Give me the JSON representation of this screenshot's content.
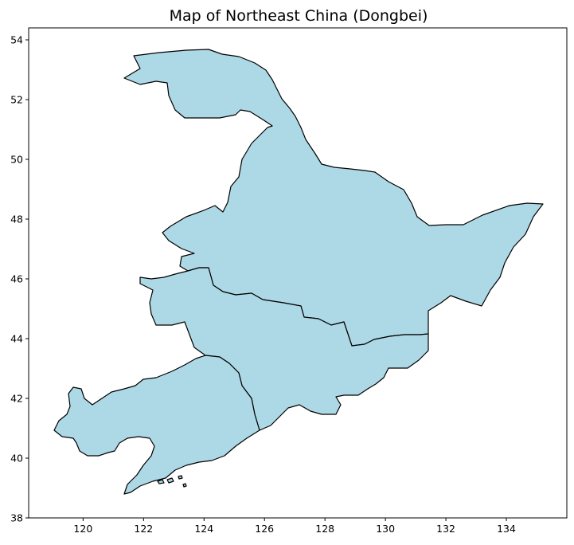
{
  "title": "Map of Northeast China (Dongbei)",
  "map": {
    "fill_color": "#add8e6",
    "edge_color": "#000000",
    "x_ticks": [
      {
        "value": 120,
        "label": "120"
      },
      {
        "value": 122,
        "label": "122"
      },
      {
        "value": 124,
        "label": "124"
      },
      {
        "value": 126,
        "label": "126"
      },
      {
        "value": 128,
        "label": "128"
      },
      {
        "value": 130,
        "label": "130"
      },
      {
        "value": 132,
        "label": "132"
      },
      {
        "value": 134,
        "label": "134"
      }
    ],
    "y_ticks": [
      {
        "value": 38,
        "label": "38"
      },
      {
        "value": 40,
        "label": "40"
      },
      {
        "value": 42,
        "label": "42"
      },
      {
        "value": 44,
        "label": "44"
      },
      {
        "value": 46,
        "label": "46"
      },
      {
        "value": 48,
        "label": "48"
      },
      {
        "value": 50,
        "label": "50"
      },
      {
        "value": 52,
        "label": "52"
      },
      {
        "value": 54,
        "label": "54"
      }
    ]
  }
}
